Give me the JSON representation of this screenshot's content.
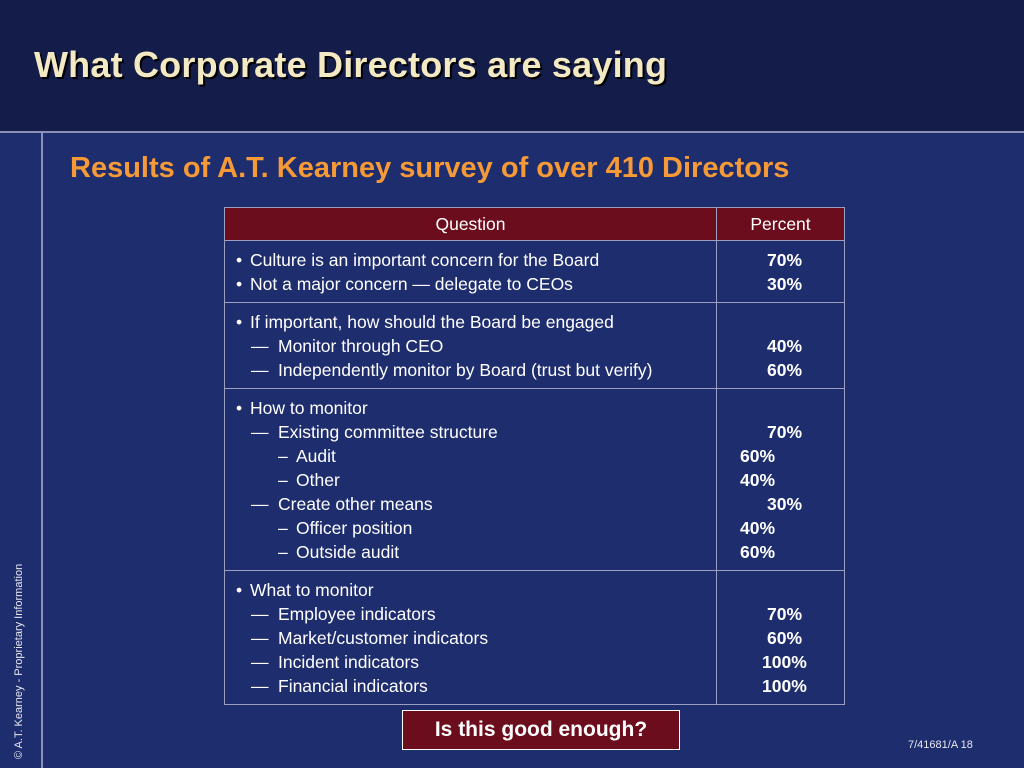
{
  "slide": {
    "title": "What Corporate Directors are saying",
    "subtitle": "Results of A.T. Kearney survey of over 410 Directors",
    "copyright": "© A.T. Kearney - Proprietary Information",
    "callout": "Is this good enough?",
    "footer": "7/41681/A  18"
  },
  "table": {
    "headers": [
      "Question",
      "Percent"
    ],
    "groups": [
      {
        "lines": [
          {
            "marker": "•",
            "text": "Culture is an important concern for the Board"
          },
          {
            "marker": "•",
            "text": "Not a major concern — delegate to CEOs"
          }
        ],
        "percents": [
          "70%",
          "30%"
        ]
      },
      {
        "lines": [
          {
            "marker": "•",
            "text": "If important, how should the Board be engaged"
          },
          {
            "marker": "—",
            "text": "Monitor through CEO"
          },
          {
            "marker": "—",
            "text": "Independently monitor by Board (trust but verify)"
          }
        ],
        "percents": [
          "",
          "40%",
          "60%"
        ]
      },
      {
        "lines": [
          {
            "marker": "•",
            "text": "How to monitor"
          },
          {
            "marker": "—",
            "text": "Existing committee structure"
          },
          {
            "marker": "–",
            "text": "Audit"
          },
          {
            "marker": "–",
            "text": "Other"
          },
          {
            "marker": "—",
            "text": "Create other means"
          },
          {
            "marker": "–",
            "text": "Officer position"
          },
          {
            "marker": "–",
            "text": "Outside audit"
          }
        ],
        "percents": [
          "",
          "70%",
          "60%",
          "40%",
          "30%",
          "40%",
          "60%"
        ]
      },
      {
        "lines": [
          {
            "marker": "•",
            "text": "What to monitor"
          },
          {
            "marker": "—",
            "text": "Employee indicators"
          },
          {
            "marker": "—",
            "text": "Market/customer indicators"
          },
          {
            "marker": "—",
            "text": "Incident indicators"
          },
          {
            "marker": "—",
            "text": "Financial indicators"
          }
        ],
        "percents": [
          "",
          "70%",
          "60%",
          "100%",
          "100%"
        ]
      }
    ]
  },
  "colors": {
    "background": "#1e2d6e",
    "title_bar": "#141c4a",
    "title_text": "#f3e9c3",
    "subtitle_text": "#f59a37",
    "table_header": "#6b0d1d",
    "callout_fill": "#6b0d1d"
  }
}
